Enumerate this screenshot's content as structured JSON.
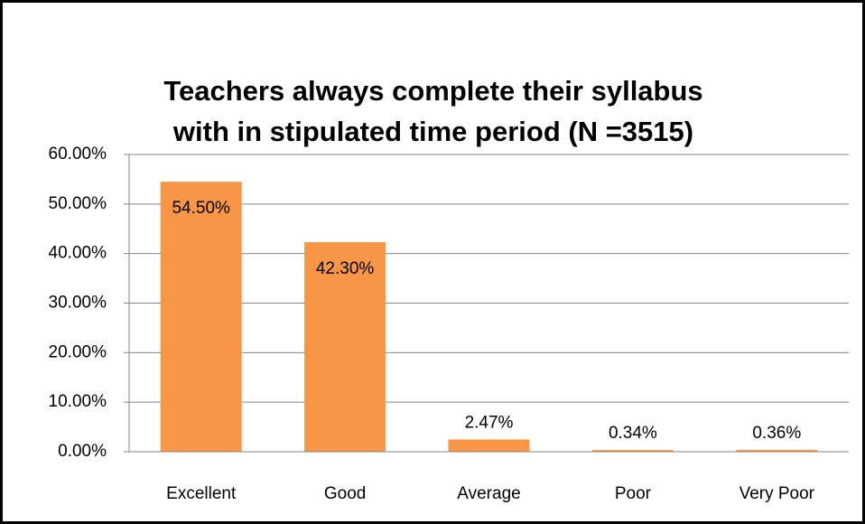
{
  "chart_data": {
    "type": "bar",
    "title": "Teachers always complete their syllabus with in stipulated time period (N =3515)",
    "categories": [
      "Excellent",
      "Good",
      "Average",
      "Poor",
      "Very Poor"
    ],
    "values": [
      54.5,
      42.3,
      2.47,
      0.34,
      0.36
    ],
    "value_labels": [
      "54.50%",
      "42.30%",
      "2.47%",
      "0.34%",
      "0.36%"
    ],
    "color": "#f79646",
    "ylim": [
      0,
      60
    ],
    "yticks": [
      {
        "value": 0,
        "label": "0.00%"
      },
      {
        "value": 10,
        "label": "10.00%"
      },
      {
        "value": 20,
        "label": "20.00%"
      },
      {
        "value": 30,
        "label": "30.00%"
      },
      {
        "value": 40,
        "label": "40.00%"
      },
      {
        "value": 50,
        "label": "50.00%"
      },
      {
        "value": 60,
        "label": "60.00%"
      }
    ],
    "grid": true
  }
}
